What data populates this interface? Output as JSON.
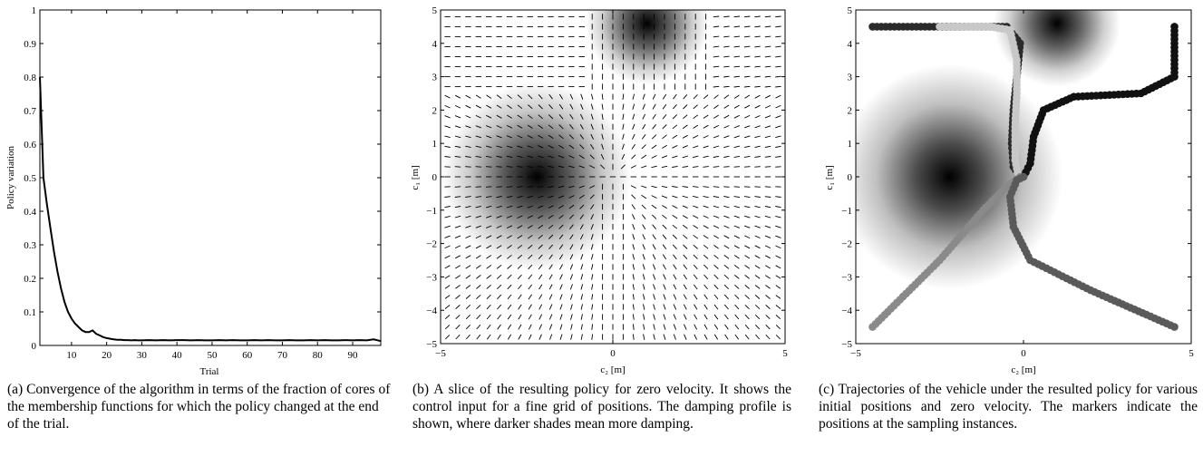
{
  "colors": {
    "axis": "#000000",
    "curve": "#000000",
    "background": "#ffffff"
  },
  "captions": {
    "a": "(a) Convergence of the algorithm in terms of the fraction of cores of the membership functions for which the policy changed at the end of the trial.",
    "b": "(b) A slice of the resulting policy for zero velocity. It shows the control input for a fine grid of positions. The damping profile is shown, where darker shades mean more damping.",
    "c": "(c) Trajectories of the vehicle under the resulted policy for various initial positions and zero velocity. The markers indicate the positions at the sampling instances."
  },
  "chart_data": [
    {
      "id": "a",
      "type": "line",
      "xlabel": "Trial",
      "ylabel": "Policy variation",
      "xlim": [
        1,
        98
      ],
      "ylim": [
        0,
        1
      ],
      "xticks": [
        10,
        20,
        30,
        40,
        50,
        60,
        70,
        80,
        90
      ],
      "yticks": [
        0,
        0.1,
        0.2,
        0.3,
        0.4,
        0.5,
        0.6,
        0.7,
        0.8,
        0.9,
        1
      ],
      "ytick_labels": [
        "0",
        "0.1",
        "0.2",
        "0.3",
        "0.4",
        "0.5",
        "0.6",
        "0.7",
        "0.8",
        "0.9",
        "1"
      ],
      "series": [
        {
          "x": [
            1,
            2,
            3,
            4,
            5,
            6,
            7,
            8,
            9,
            10,
            11,
            12,
            13,
            14,
            15,
            16,
            17,
            18,
            19,
            20,
            21,
            22,
            23,
            24,
            25,
            26,
            27,
            28,
            29,
            30,
            32,
            34,
            36,
            38,
            40,
            42,
            44,
            46,
            48,
            50,
            52,
            54,
            56,
            58,
            60,
            62,
            64,
            66,
            68,
            70,
            72,
            74,
            76,
            78,
            80,
            82,
            84,
            86,
            88,
            90,
            92,
            94,
            96,
            98
          ],
          "y": [
            0.8,
            0.5,
            0.42,
            0.35,
            0.28,
            0.22,
            0.17,
            0.13,
            0.1,
            0.08,
            0.065,
            0.055,
            0.045,
            0.04,
            0.04,
            0.045,
            0.035,
            0.03,
            0.025,
            0.022,
            0.02,
            0.018,
            0.017,
            0.017,
            0.016,
            0.016,
            0.015,
            0.016,
            0.015,
            0.015,
            0.016,
            0.015,
            0.016,
            0.015,
            0.016,
            0.016,
            0.015,
            0.016,
            0.015,
            0.015,
            0.016,
            0.015,
            0.016,
            0.015,
            0.015,
            0.016,
            0.015,
            0.016,
            0.015,
            0.015,
            0.016,
            0.015,
            0.015,
            0.016,
            0.015,
            0.016,
            0.015,
            0.015,
            0.016,
            0.015,
            0.016,
            0.015,
            0.018,
            0.013
          ]
        }
      ]
    },
    {
      "id": "b",
      "type": "heatmap",
      "xlabel": "c₂ [m]",
      "ylabel": "c₁ [m]",
      "xlim": [
        -5,
        5
      ],
      "ylim": [
        -5,
        5
      ],
      "xticks": [
        -5,
        0,
        5
      ],
      "yticks": [
        -5,
        -4,
        -3,
        -2,
        -1,
        0,
        1,
        2,
        3,
        4,
        5
      ],
      "damping_centers": [
        {
          "x": -2.2,
          "y": 0,
          "sigma": 1.3
        },
        {
          "x": 1,
          "y": 4.6,
          "sigma": 0.85
        }
      ],
      "arrow_grid": {
        "x_range": [
          -4.8,
          4.8
        ],
        "y_range": [
          -4.8,
          4.8
        ],
        "count": 33
      }
    },
    {
      "id": "c",
      "type": "scatter",
      "xlabel": "c₂ [m]",
      "ylabel": "c₁ [m]",
      "xlim": [
        -5,
        5
      ],
      "ylim": [
        -5,
        5
      ],
      "xticks": [
        -5,
        0,
        5
      ],
      "yticks": [
        -5,
        -4,
        -3,
        -2,
        -1,
        0,
        1,
        2,
        3,
        4,
        5
      ],
      "damping_centers": [
        {
          "x": -2.2,
          "y": 0,
          "sigma": 1.6
        },
        {
          "x": 1,
          "y": 4.6,
          "sigma": 0.9
        }
      ],
      "trajectories": [
        {
          "color": "#2a2a2a",
          "start": [
            -4.5,
            4.5
          ],
          "path": [
            [
              -4.5,
              4.5
            ],
            [
              -1.5,
              4.5
            ],
            [
              -0.5,
              4.5
            ],
            [
              -0.1,
              4.0
            ],
            [
              -0.2,
              3.0
            ],
            [
              -0.3,
              2.0
            ],
            [
              -0.35,
              1.0
            ],
            [
              -0.3,
              0.3
            ],
            [
              -0.1,
              0.0
            ]
          ]
        },
        {
          "color": "#c8c8c8",
          "start": [
            -2.5,
            4.5
          ],
          "path": [
            [
              -2.5,
              4.5
            ],
            [
              -1.0,
              4.5
            ],
            [
              -0.4,
              4.4
            ],
            [
              -0.2,
              3.5
            ],
            [
              -0.2,
              2.5
            ],
            [
              -0.25,
              1.5
            ],
            [
              -0.25,
              0.5
            ],
            [
              -0.15,
              0.0
            ]
          ]
        },
        {
          "color": "#111111",
          "start": [
            4.5,
            4.5
          ],
          "path": [
            [
              4.5,
              4.5
            ],
            [
              4.5,
              3.0
            ],
            [
              3.5,
              2.5
            ],
            [
              1.5,
              2.4
            ],
            [
              0.6,
              2.0
            ],
            [
              0.3,
              1.2
            ],
            [
              0.2,
              0.4
            ],
            [
              0.0,
              0.0
            ]
          ]
        },
        {
          "color": "#8a8a8a",
          "start": [
            -4.5,
            -4.5
          ],
          "path": [
            [
              -4.5,
              -4.5
            ],
            [
              -2.5,
              -2.5
            ],
            [
              -1.2,
              -1.0
            ],
            [
              -0.5,
              -0.3
            ],
            [
              -0.1,
              0.0
            ]
          ]
        },
        {
          "color": "#5a5a5a",
          "start": [
            4.5,
            -4.5
          ],
          "path": [
            [
              4.5,
              -4.5
            ],
            [
              2.0,
              -3.4
            ],
            [
              0.2,
              -2.5
            ],
            [
              -0.3,
              -1.5
            ],
            [
              -0.4,
              -0.6
            ],
            [
              -0.2,
              -0.1
            ],
            [
              0.0,
              0.0
            ]
          ]
        }
      ]
    }
  ]
}
